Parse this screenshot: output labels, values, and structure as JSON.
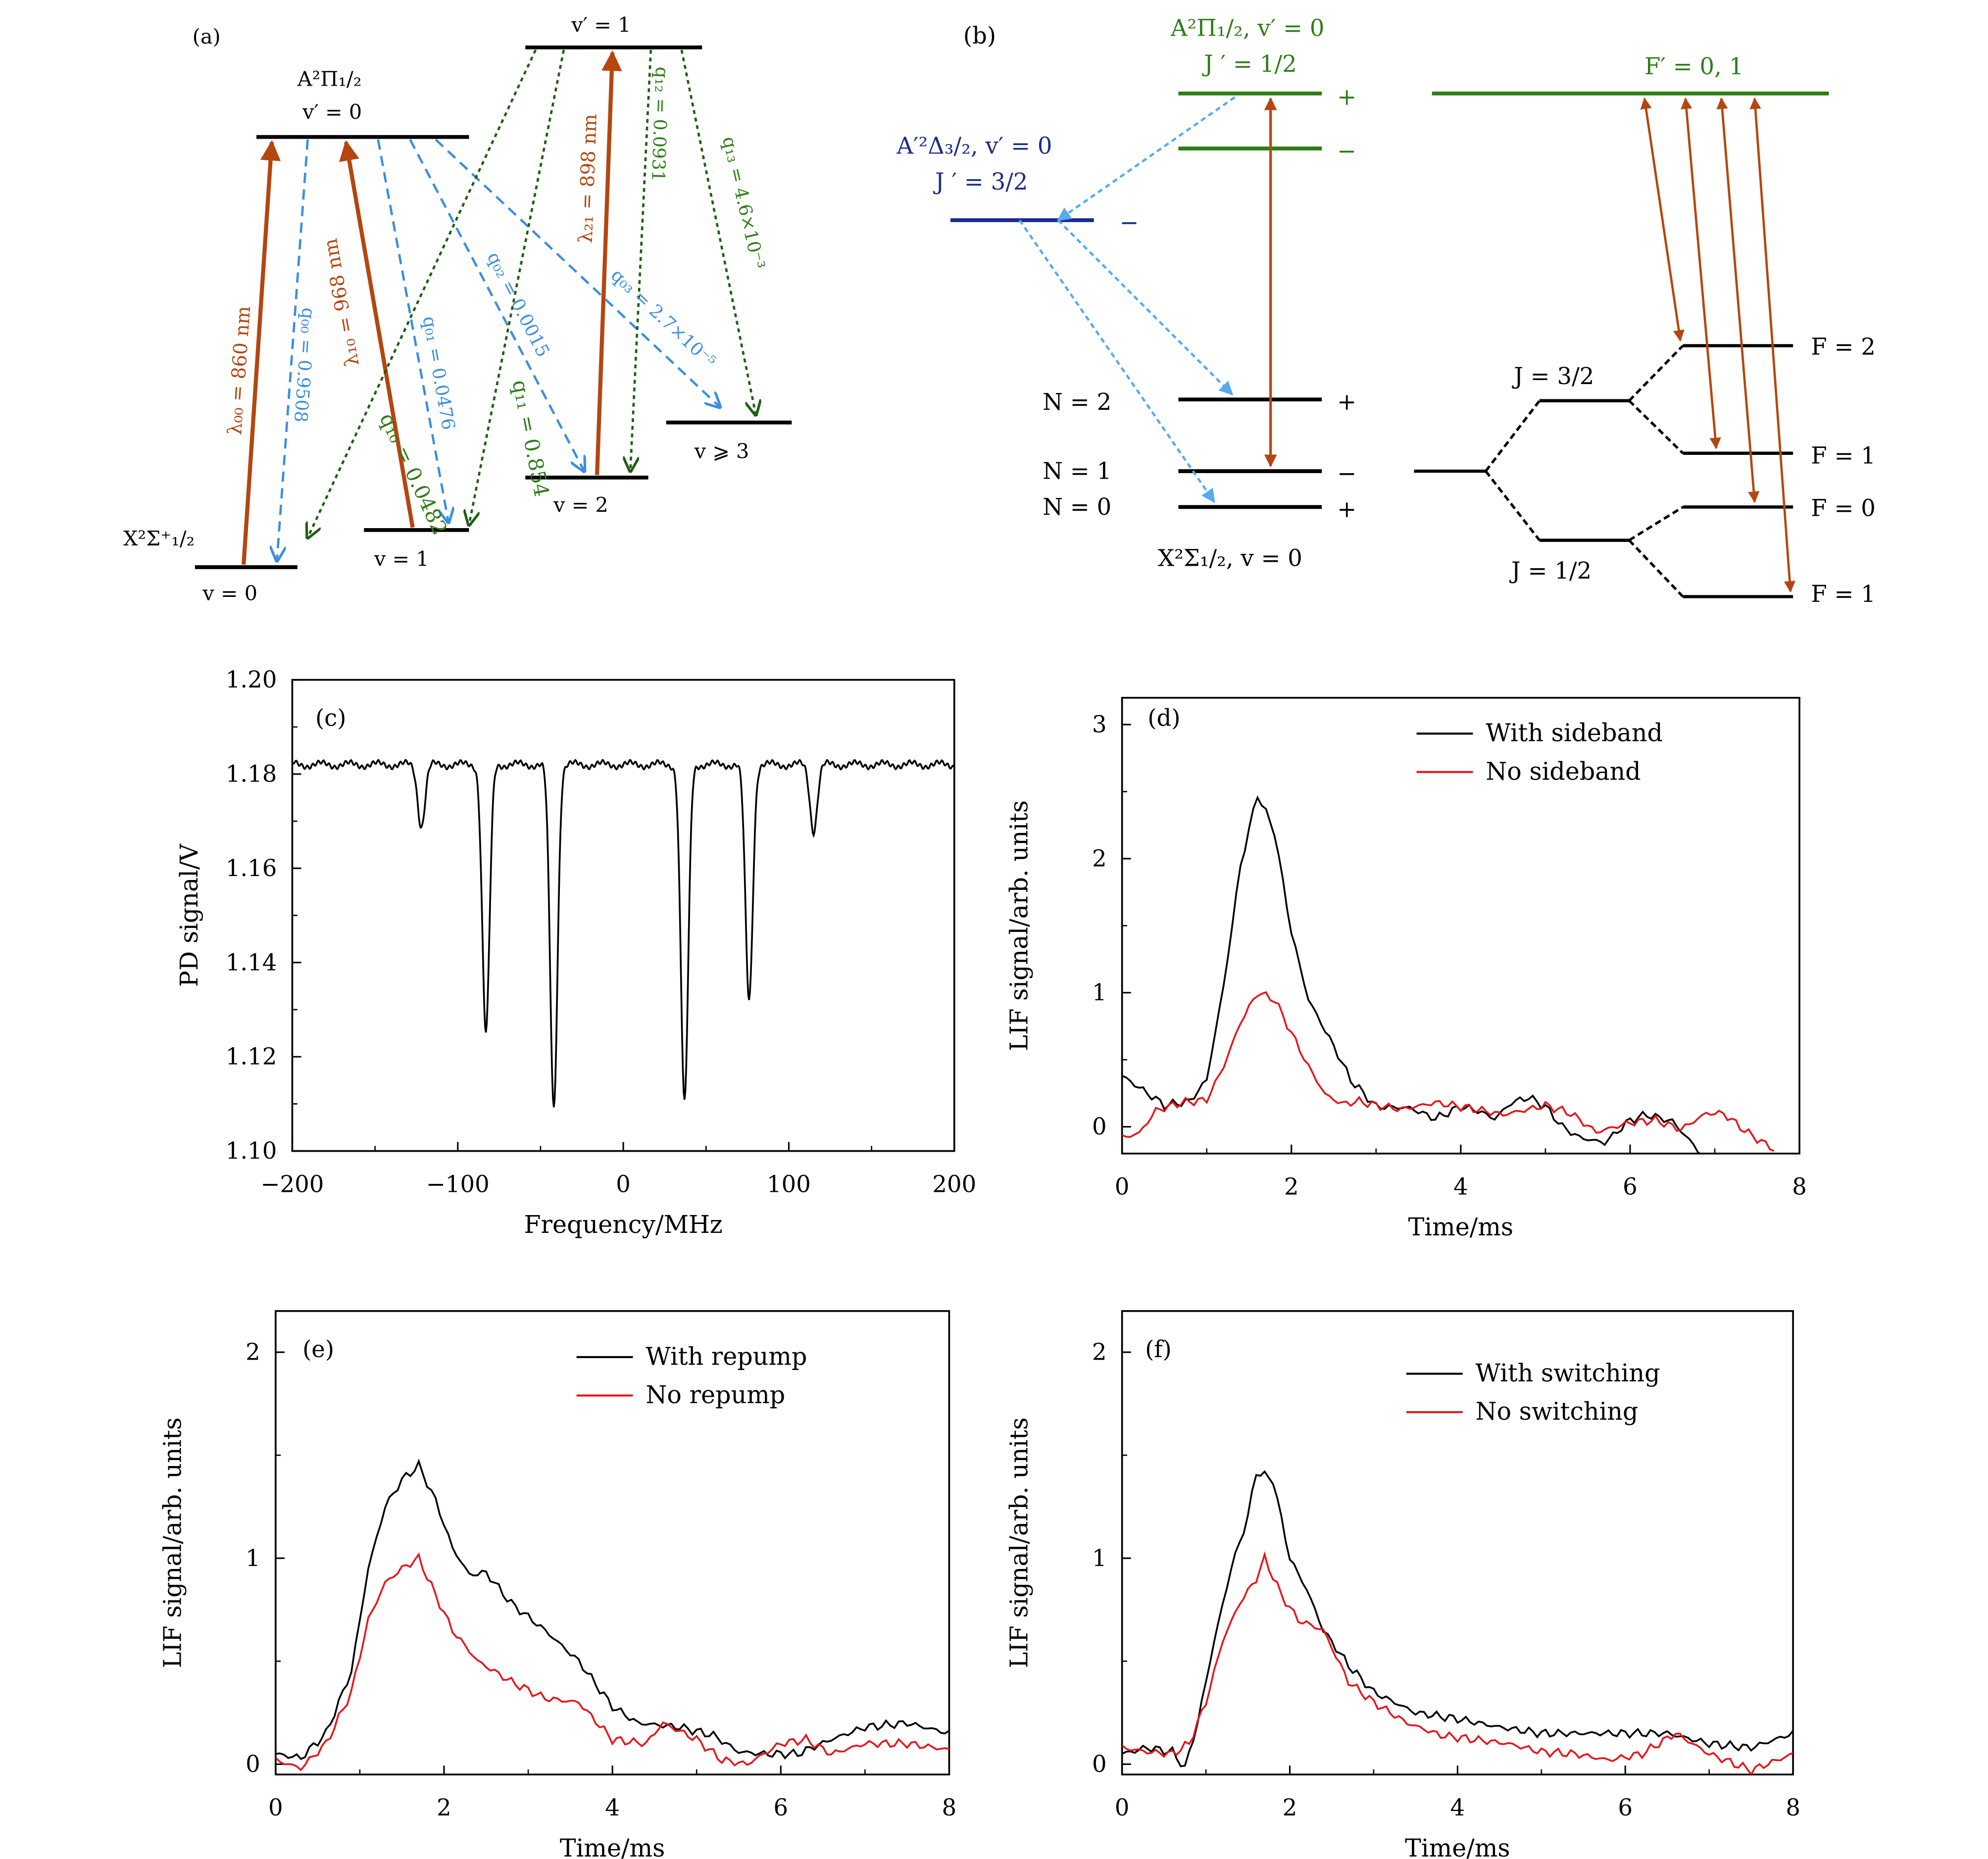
{
  "colors": {
    "black": "#000000",
    "red": "#e8141a",
    "orange": "#b5460f",
    "blue": "#3a8ee0",
    "lightblue": "#56aaf0",
    "green": "#2e7d17",
    "darkgreen": "#1e5e12",
    "navy": "#1a2a8c"
  },
  "panel_a": {
    "tag": "(a)",
    "states": {
      "v0": "v = 0",
      "v1": "v = 1",
      "v2": "v = 2",
      "v3": "v ⩾ 3",
      "vp0": "v′ = 0",
      "vp1": "v′ = 1",
      "ground_name": "X²Σ⁺₁/₂",
      "excited_name": "A²Π₁/₂"
    },
    "transitions": [
      {
        "id": "l00",
        "label": "λ₀₀ = 860 nm",
        "kind": "laser"
      },
      {
        "id": "l10",
        "label": "λ₁₀ = 968 nm",
        "kind": "laser"
      },
      {
        "id": "l21",
        "label": "λ₂₁ = 898 nm",
        "kind": "laser"
      },
      {
        "id": "q00",
        "label": "q₀₀ = 0.9508",
        "kind": "decay0"
      },
      {
        "id": "q01",
        "label": "q₀₁ = 0.0476",
        "kind": "decay0"
      },
      {
        "id": "q02",
        "label": "q₀₂ = 0.0015",
        "kind": "decay0"
      },
      {
        "id": "q03",
        "label": "q₀₃ = 2.7×10⁻⁵",
        "kind": "decay0"
      },
      {
        "id": "q10",
        "label": "q₁₀ = 0.0482",
        "kind": "decay1"
      },
      {
        "id": "q11",
        "label": "q₁₁ = 0.854",
        "kind": "decay1"
      },
      {
        "id": "q12",
        "label": "q₁₂ = 0.0931",
        "kind": "decay1"
      },
      {
        "id": "q13",
        "label": "q₁₃ = 4.6×10⁻³",
        "kind": "decay1"
      }
    ]
  },
  "panel_b": {
    "tag": "(b)",
    "excited_title": "A²Π₁/₂, v′ = 0",
    "excited_j": "J ′ = 1/2",
    "aprime_title": "A′²Δ₃/₂, v′ = 0",
    "aprime_j": "J ′ = 3/2",
    "plus": "+",
    "minus": "−",
    "n2": "N = 2",
    "n1": "N = 1",
    "n0": "N = 0",
    "ground": "X²Σ₁/₂, v = 0",
    "fprime": "F′ = 0, 1",
    "j32": "J = 3/2",
    "j12": "J = 1/2",
    "f2": "F = 2",
    "f1a": "F = 1",
    "f0": "F = 0",
    "f1b": "F = 1"
  },
  "chart_data": [
    {
      "panel": "(c)",
      "type": "line",
      "xlabel": "Frequency/MHz",
      "ylabel": "PD signal/V",
      "xlim": [
        -200,
        200
      ],
      "ylim": [
        1.1,
        1.2
      ],
      "xticks": [
        -200,
        -100,
        0,
        100,
        200
      ],
      "yticks": [
        1.1,
        1.12,
        1.14,
        1.16,
        1.18,
        1.2
      ],
      "xtick_labels": [
        "−200",
        "−100",
        "0",
        "100",
        "200"
      ],
      "ytick_labels": [
        "1.10",
        "1.12",
        "1.14",
        "1.16",
        "1.18",
        "1.20"
      ],
      "series": [
        {
          "color": "#000000",
          "baseline": 1.182,
          "dips": [
            [
              -122,
              1.169
            ],
            [
              -83,
              1.125
            ],
            [
              -42,
              1.109
            ],
            [
              37,
              1.11
            ],
            [
              76,
              1.132
            ],
            [
              115,
              1.168
            ]
          ]
        }
      ]
    },
    {
      "panel": "(d)",
      "type": "line",
      "xlabel": "Time/ms",
      "ylabel": "LIF signal/arb. units",
      "xlim": [
        0,
        8
      ],
      "ylim": [
        -0.2,
        3.2
      ],
      "xticks": [
        0,
        2,
        4,
        6,
        8
      ],
      "yticks": [
        0,
        1,
        2,
        3
      ],
      "legend": [
        "With sideband",
        "No sideband"
      ],
      "series": [
        {
          "name": "With sideband",
          "color": "#000000",
          "points": [
            [
              0,
              0.38
            ],
            [
              0.3,
              0.25
            ],
            [
              0.5,
              0.16
            ],
            [
              0.8,
              0.19
            ],
            [
              1.0,
              0.35
            ],
            [
              1.2,
              1.05
            ],
            [
              1.4,
              1.95
            ],
            [
              1.6,
              2.48
            ],
            [
              1.8,
              2.2
            ],
            [
              2.0,
              1.45
            ],
            [
              2.2,
              0.95
            ],
            [
              2.5,
              0.6
            ],
            [
              2.7,
              0.35
            ],
            [
              3.0,
              0.15
            ],
            [
              3.4,
              0.14
            ],
            [
              3.7,
              0.06
            ],
            [
              4.0,
              0.15
            ],
            [
              4.2,
              0.12
            ],
            [
              4.4,
              0.06
            ],
            [
              4.6,
              0.18
            ],
            [
              4.8,
              0.22
            ],
            [
              5.0,
              0.15
            ],
            [
              5.2,
              0.0
            ],
            [
              5.4,
              -0.08
            ],
            [
              5.7,
              -0.12
            ],
            [
              6.0,
              0.05
            ],
            [
              6.2,
              0.09
            ],
            [
              6.5,
              0.04
            ],
            [
              6.7,
              -0.1
            ],
            [
              6.9,
              -0.25
            ]
          ]
        },
        {
          "name": "No sideband",
          "color": "#e8141a",
          "points": [
            [
              0,
              -0.08
            ],
            [
              0.2,
              -0.05
            ],
            [
              0.4,
              0.12
            ],
            [
              0.7,
              0.18
            ],
            [
              1.0,
              0.2
            ],
            [
              1.2,
              0.45
            ],
            [
              1.4,
              0.78
            ],
            [
              1.6,
              1.0
            ],
            [
              1.8,
              0.95
            ],
            [
              2.0,
              0.7
            ],
            [
              2.2,
              0.45
            ],
            [
              2.4,
              0.24
            ],
            [
              2.6,
              0.17
            ],
            [
              2.8,
              0.19
            ],
            [
              3.0,
              0.16
            ],
            [
              3.3,
              0.13
            ],
            [
              3.7,
              0.18
            ],
            [
              4.1,
              0.14
            ],
            [
              4.5,
              0.09
            ],
            [
              4.8,
              0.13
            ],
            [
              5.0,
              0.16
            ],
            [
              5.3,
              0.1
            ],
            [
              5.6,
              -0.04
            ],
            [
              6.0,
              0.03
            ],
            [
              6.3,
              0.05
            ],
            [
              6.6,
              -0.02
            ],
            [
              6.9,
              0.1
            ],
            [
              7.1,
              0.1
            ],
            [
              7.4,
              -0.05
            ],
            [
              7.7,
              -0.17
            ]
          ]
        }
      ]
    },
    {
      "panel": "(e)",
      "type": "line",
      "xlabel": "Time/ms",
      "ylabel": "LIF signal/arb. units",
      "xlim": [
        0,
        8
      ],
      "ylim": [
        -0.05,
        2.2
      ],
      "xticks": [
        0,
        2,
        4,
        6,
        8
      ],
      "yticks": [
        0,
        1,
        2
      ],
      "legend": [
        "With repump",
        "No repump"
      ],
      "series": [
        {
          "name": "With repump",
          "color": "#000000",
          "points": [
            [
              0,
              0.05
            ],
            [
              0.3,
              0.03
            ],
            [
              0.6,
              0.15
            ],
            [
              0.9,
              0.45
            ],
            [
              1.1,
              0.95
            ],
            [
              1.3,
              1.25
            ],
            [
              1.5,
              1.38
            ],
            [
              1.7,
              1.45
            ],
            [
              1.9,
              1.28
            ],
            [
              2.1,
              1.05
            ],
            [
              2.3,
              0.92
            ],
            [
              2.5,
              0.93
            ],
            [
              2.8,
              0.78
            ],
            [
              3.2,
              0.65
            ],
            [
              3.6,
              0.5
            ],
            [
              4.0,
              0.28
            ],
            [
              4.3,
              0.2
            ],
            [
              4.8,
              0.18
            ],
            [
              5.2,
              0.14
            ],
            [
              5.5,
              0.06
            ],
            [
              5.8,
              0.05
            ],
            [
              6.2,
              0.05
            ],
            [
              6.6,
              0.12
            ],
            [
              7.0,
              0.18
            ],
            [
              7.5,
              0.2
            ],
            [
              8.0,
              0.15
            ]
          ]
        },
        {
          "name": "No repump",
          "color": "#e8141a",
          "points": [
            [
              0,
              0.02
            ],
            [
              0.3,
              -0.02
            ],
            [
              0.6,
              0.1
            ],
            [
              0.9,
              0.35
            ],
            [
              1.1,
              0.7
            ],
            [
              1.3,
              0.88
            ],
            [
              1.5,
              0.95
            ],
            [
              1.7,
              1.0
            ],
            [
              1.9,
              0.82
            ],
            [
              2.1,
              0.65
            ],
            [
              2.4,
              0.5
            ],
            [
              2.8,
              0.4
            ],
            [
              3.2,
              0.32
            ],
            [
              3.6,
              0.3
            ],
            [
              4.0,
              0.12
            ],
            [
              4.4,
              0.1
            ],
            [
              4.6,
              0.2
            ],
            [
              5.0,
              0.12
            ],
            [
              5.3,
              0.02
            ],
            [
              5.6,
              0.0
            ],
            [
              6.0,
              0.1
            ],
            [
              6.3,
              0.12
            ],
            [
              6.6,
              0.05
            ],
            [
              7.0,
              0.1
            ],
            [
              7.5,
              0.1
            ],
            [
              8.0,
              0.07
            ]
          ]
        }
      ]
    },
    {
      "panel": "(f)",
      "type": "line",
      "xlabel": "Time/ms",
      "ylabel": "LIF signal/arb. units",
      "xlim": [
        0,
        8
      ],
      "ylim": [
        -0.05,
        2.2
      ],
      "xticks": [
        0,
        2,
        4,
        6,
        8
      ],
      "yticks": [
        0,
        1,
        2
      ],
      "legend": [
        "With switching",
        "No switching"
      ],
      "series": [
        {
          "name": "With switching",
          "color": "#000000",
          "points": [
            [
              0,
              0.05
            ],
            [
              0.3,
              0.08
            ],
            [
              0.6,
              0.06
            ],
            [
              0.75,
              -0.02
            ],
            [
              0.9,
              0.2
            ],
            [
              1.1,
              0.6
            ],
            [
              1.3,
              0.95
            ],
            [
              1.5,
              1.2
            ],
            [
              1.6,
              1.42
            ],
            [
              1.8,
              1.38
            ],
            [
              2.0,
              1.0
            ],
            [
              2.2,
              0.85
            ],
            [
              2.4,
              0.65
            ],
            [
              2.7,
              0.48
            ],
            [
              3.0,
              0.35
            ],
            [
              3.5,
              0.25
            ],
            [
              4.0,
              0.22
            ],
            [
              4.5,
              0.18
            ],
            [
              5.0,
              0.15
            ],
            [
              5.5,
              0.15
            ],
            [
              6.0,
              0.15
            ],
            [
              6.5,
              0.15
            ],
            [
              7.0,
              0.1
            ],
            [
              7.5,
              0.08
            ],
            [
              8.0,
              0.15
            ]
          ]
        },
        {
          "name": "No switching",
          "color": "#e8141a",
          "points": [
            [
              0,
              0.08
            ],
            [
              0.3,
              0.06
            ],
            [
              0.6,
              0.05
            ],
            [
              0.8,
              0.1
            ],
            [
              1.0,
              0.3
            ],
            [
              1.2,
              0.6
            ],
            [
              1.4,
              0.78
            ],
            [
              1.6,
              0.9
            ],
            [
              1.7,
              1.0
            ],
            [
              1.9,
              0.82
            ],
            [
              2.1,
              0.7
            ],
            [
              2.4,
              0.65
            ],
            [
              2.7,
              0.4
            ],
            [
              3.0,
              0.3
            ],
            [
              3.4,
              0.2
            ],
            [
              3.8,
              0.14
            ],
            [
              4.2,
              0.12
            ],
            [
              4.6,
              0.1
            ],
            [
              5.0,
              0.06
            ],
            [
              5.4,
              0.05
            ],
            [
              5.8,
              0.02
            ],
            [
              6.2,
              0.05
            ],
            [
              6.6,
              0.15
            ],
            [
              7.0,
              0.05
            ],
            [
              7.5,
              -0.03
            ],
            [
              8.0,
              0.05
            ]
          ]
        }
      ]
    }
  ]
}
